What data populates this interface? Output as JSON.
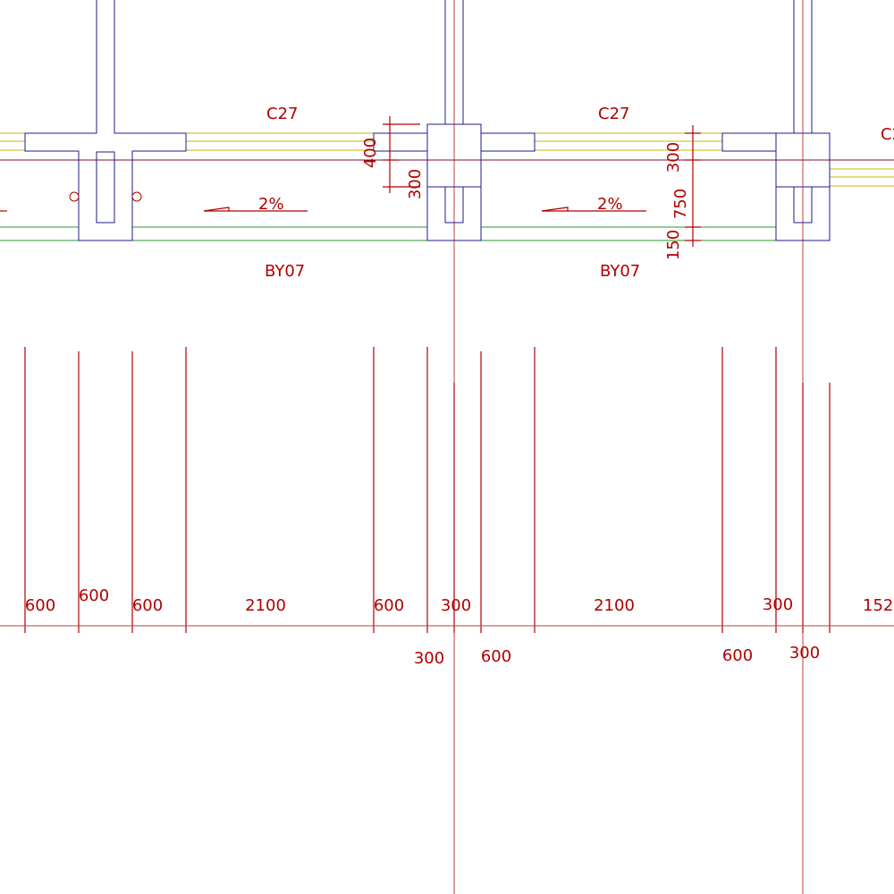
{
  "beam_labels": {
    "beam_1": "C27",
    "beam_2": "C27",
    "beam_3_partial": "C2"
  },
  "plate_labels": {
    "plate_1": "BY07",
    "plate_2": "BY07"
  },
  "slopes": {
    "slope_1": "2%",
    "slope_2": "2%"
  },
  "section_dims": {
    "left_400": "400",
    "left_300": "300",
    "right_300": "300",
    "right_750": "750",
    "right_150": "150"
  },
  "bottom_dims_upper": {
    "d1": "600",
    "d2": "600",
    "d3": "600",
    "d4": "2100",
    "d5": "600",
    "d6": "300",
    "d7": "2100",
    "d8": "300",
    "d9_partial": "152"
  },
  "bottom_dims_lower": {
    "d1": "300",
    "d2": "600",
    "d3": "600",
    "d4": "300"
  },
  "colors": {
    "structure": "#1e1e8c",
    "dimension": "#b00000",
    "slab_line": "#c8b400",
    "bottom_line": "#2a9a2a"
  }
}
